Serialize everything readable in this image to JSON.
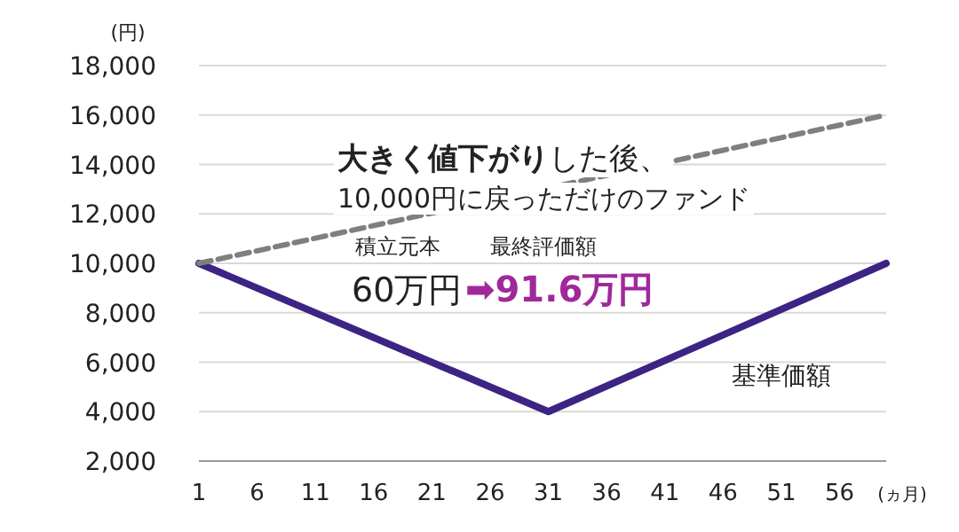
{
  "chart_data": {
    "type": "line",
    "ylabel": "(円)",
    "xlabel": "(ヵ月)",
    "x": [
      1,
      31,
      60
    ],
    "series": [
      {
        "name": "基準価額",
        "color": "#3d2383",
        "values": [
          10000,
          4000,
          10000
        ],
        "line_style": "solid"
      },
      {
        "type": "line",
        "x": [
          1,
          60
        ],
        "color": "#7f7f7f",
        "values": [
          10000,
          16000
        ],
        "line_style": "dashed"
      }
    ],
    "xlim": [
      1,
      60
    ],
    "xticks": [
      1,
      6,
      11,
      16,
      21,
      26,
      31,
      36,
      41,
      46,
      51,
      56
    ],
    "ylim": [
      2000,
      18000
    ],
    "yticks": [
      {
        "value": 2000,
        "label": "2,000"
      },
      {
        "value": 4000,
        "label": "4,000"
      },
      {
        "value": 6000,
        "label": "6,000"
      },
      {
        "value": 8000,
        "label": "8,000"
      },
      {
        "value": 10000,
        "label": "10,000"
      },
      {
        "value": 12000,
        "label": "12,000"
      },
      {
        "value": 14000,
        "label": "14,000"
      },
      {
        "value": 16000,
        "label": "16,000"
      },
      {
        "value": 18000,
        "label": "18,000"
      }
    ],
    "grid": "y",
    "annotations": [
      "**大きく値下がり**した後、",
      "10,000円に戻っただけのファンド",
      "積立元本",
      "60万円",
      "最終評価額",
      "➡91.6万円"
    ]
  }
}
